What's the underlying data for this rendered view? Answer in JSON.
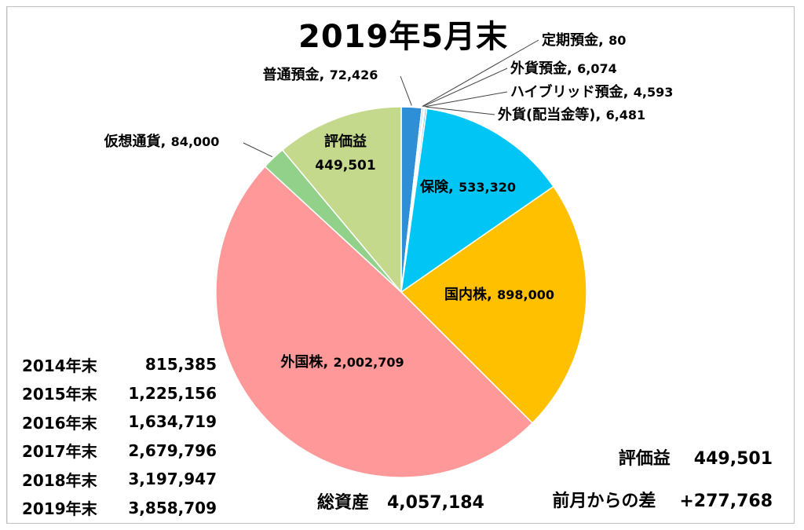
{
  "chart_data": {
    "type": "pie",
    "title": "2019年5月末",
    "slices": [
      {
        "label": "普通預金",
        "value": 72426,
        "value_text": "72,426",
        "color": "#2e8fd6"
      },
      {
        "label": "定期預金",
        "value": 80,
        "value_text": "80",
        "color": "#6f9fd8"
      },
      {
        "label": "外貨預金",
        "value": 6074,
        "value_text": "6,074",
        "color": "#a9c4e8"
      },
      {
        "label": "ハイブリッド預金",
        "value": 4593,
        "value_text": "4,593",
        "color": "#c9d8f0"
      },
      {
        "label": "外貨(配当金等)",
        "value": 6481,
        "value_text": "6,481",
        "color": "#8db4e2"
      },
      {
        "label": "保険",
        "value": 533320,
        "value_text": "533,320",
        "color": "#00c5f5"
      },
      {
        "label": "国内株",
        "value": 898000,
        "value_text": "898,000",
        "color": "#ffc000"
      },
      {
        "label": "外国株",
        "value": 2002709,
        "value_text": "2,002,709",
        "color": "#ff9999"
      },
      {
        "label": "仮想通貨",
        "value": 84000,
        "value_text": "84,000",
        "color": "#92d18a"
      },
      {
        "label": "評価益",
        "value": 449501,
        "value_text": "449,501",
        "color": "#c4d98c"
      }
    ]
  },
  "history": [
    {
      "year": "2014年末",
      "value": "815,385"
    },
    {
      "year": "2015年末",
      "value": "1,225,156"
    },
    {
      "year": "2016年末",
      "value": "1,634,719"
    },
    {
      "year": "2017年末",
      "value": "2,679,796"
    },
    {
      "year": "2018年末",
      "value": "3,197,947"
    },
    {
      "year": "2019年末",
      "value": "3,858,709"
    }
  ],
  "total": {
    "label": "総資産",
    "value": "4,057,184"
  },
  "summary": {
    "gain_label": "評価益",
    "gain_value": "449,501",
    "diff_label": "前月からの差",
    "diff_value": "+277,768"
  }
}
